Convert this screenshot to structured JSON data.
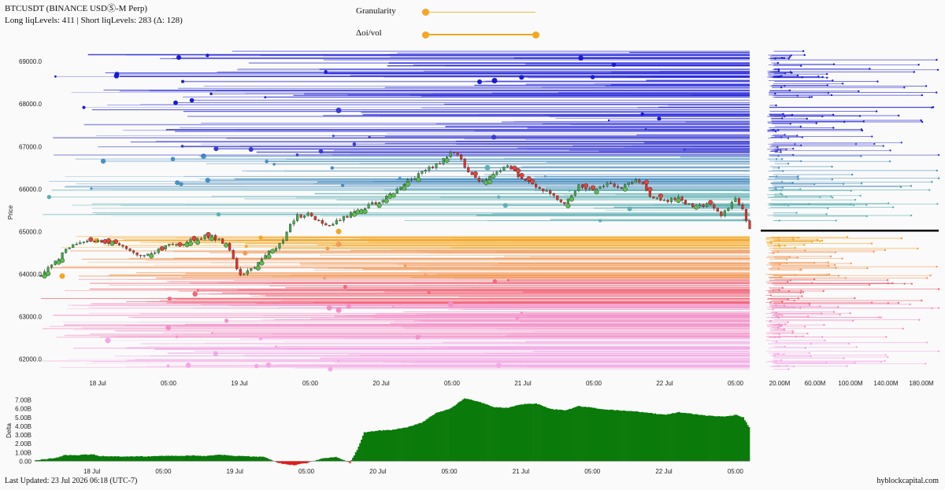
{
  "header": {
    "title": "BTCUSDT (BINANCE USDⓈ-M Perp)",
    "levels_line": "Long liqLevels: 411 | Short liqLevels: 283 (Δ: 128)"
  },
  "controls": {
    "granularity_label": "Granularity",
    "granularity_value": 0.0,
    "oi_vol_label": "Δoi/vol",
    "oi_vol_range": [
      0.0,
      1.0
    ]
  },
  "footer": {
    "last_updated": "Last Updated: 23 Jul 2026 06:18 (UTC-7)",
    "brand": "hyblockcapital.com"
  },
  "colors": {
    "background": "#fafafa",
    "short_levels": [
      "#1a1ad8",
      "#3a3ad6",
      "#4a8fc0",
      "#5fb0b4"
    ],
    "long_levels": [
      "#f5a623",
      "#f39a5a",
      "#f2677a",
      "#f48fc8",
      "#f4a8e6"
    ],
    "candle_up": "#3fa84a",
    "candle_down": "#e0302a",
    "delta_positive": "#0a7a0a",
    "delta_negative": "#e01a1a",
    "current_price_line": "#000000",
    "slider_knob": "#f5a623"
  },
  "chart_data": [
    {
      "type": "line",
      "name": "price-liquidation-levels",
      "ylabel": "Price",
      "xlabel": "",
      "y_ticks": [
        "62000.0",
        "63000.0",
        "64000.0",
        "65000.0",
        "66000.0",
        "67000.0",
        "68000.0",
        "69000.0"
      ],
      "ylim": [
        61600,
        69300
      ],
      "x_ticks": [
        "18 Jul",
        "05:00",
        "19 Jul",
        "05:00",
        "20 Jul",
        "05:00",
        "21 Jul",
        "05:00",
        "22 Jul",
        "05:00"
      ],
      "price_path": [
        [
          0,
          63950
        ],
        [
          2,
          64300
        ],
        [
          4,
          64650
        ],
        [
          6,
          64750
        ],
        [
          8,
          64800
        ],
        [
          10,
          64720
        ],
        [
          12,
          64600
        ],
        [
          14,
          64450
        ],
        [
          16,
          64520
        ],
        [
          18,
          64680
        ],
        [
          20,
          64700
        ],
        [
          22,
          64850
        ],
        [
          24,
          64900
        ],
        [
          26,
          64720
        ],
        [
          27,
          64450
        ],
        [
          28,
          63950
        ],
        [
          30,
          64150
        ],
        [
          32,
          64500
        ],
        [
          34,
          64750
        ],
        [
          35,
          65100
        ],
        [
          36,
          65350
        ],
        [
          38,
          65400
        ],
        [
          40,
          65100
        ],
        [
          42,
          65250
        ],
        [
          44,
          65450
        ],
        [
          46,
          65600
        ],
        [
          48,
          65700
        ],
        [
          50,
          65950
        ],
        [
          52,
          66200
        ],
        [
          54,
          66450
        ],
        [
          56,
          66600
        ],
        [
          58,
          66850
        ],
        [
          59,
          66750
        ],
        [
          60,
          66450
        ],
        [
          62,
          66150
        ],
        [
          64,
          66400
        ],
        [
          66,
          66550
        ],
        [
          68,
          66200
        ],
        [
          70,
          66050
        ],
        [
          72,
          65900
        ],
        [
          74,
          65650
        ],
        [
          76,
          66100
        ],
        [
          78,
          65950
        ],
        [
          80,
          66150
        ],
        [
          82,
          66050
        ],
        [
          84,
          66250
        ],
        [
          86,
          65850
        ],
        [
          88,
          65700
        ],
        [
          90,
          65800
        ],
        [
          92,
          65550
        ],
        [
          94,
          65650
        ],
        [
          96,
          65400
        ],
        [
          98,
          65750
        ],
        [
          99,
          65500
        ],
        [
          100,
          65050
        ]
      ],
      "current_price": 65020,
      "side_axis_ticks": [
        "20.00M",
        "60.00M",
        "100.00M",
        "140.00M",
        "180.00M"
      ]
    },
    {
      "type": "area",
      "name": "delta",
      "ylabel": "Delta",
      "y_ticks": [
        "0.00",
        "1.00B",
        "2.00B",
        "3.00B",
        "4.00B",
        "5.00B",
        "6.00B",
        "7.00B"
      ],
      "ylim": [
        -0.5,
        7.5
      ],
      "x_ticks": [
        "18 Jul",
        "05:00",
        "19 Jul",
        "05:00",
        "20 Jul",
        "05:00",
        "21 Jul",
        "05:00",
        "22 Jul",
        "05:00"
      ],
      "unit": "B",
      "series": [
        [
          0,
          0.1
        ],
        [
          3,
          0.4
        ],
        [
          4,
          0.7
        ],
        [
          6,
          0.7
        ],
        [
          8,
          0.8
        ],
        [
          9,
          0.6
        ],
        [
          12,
          0.55
        ],
        [
          16,
          0.55
        ],
        [
          18,
          0.6
        ],
        [
          22,
          0.65
        ],
        [
          24,
          0.6
        ],
        [
          26,
          0.75
        ],
        [
          28,
          0.6
        ],
        [
          32,
          0.5
        ],
        [
          34,
          -0.2
        ],
        [
          36,
          -0.45
        ],
        [
          38,
          -0.2
        ],
        [
          40,
          0.3
        ],
        [
          42,
          0.5
        ],
        [
          44,
          -0.2
        ],
        [
          45,
          1.3
        ],
        [
          46,
          3.3
        ],
        [
          48,
          3.5
        ],
        [
          50,
          3.6
        ],
        [
          52,
          3.9
        ],
        [
          54,
          4.4
        ],
        [
          56,
          5.5
        ],
        [
          58,
          6.0
        ],
        [
          60,
          7.2
        ],
        [
          62,
          6.8
        ],
        [
          64,
          6.2
        ],
        [
          66,
          6.1
        ],
        [
          68,
          6.5
        ],
        [
          70,
          6.6
        ],
        [
          72,
          6.0
        ],
        [
          74,
          5.8
        ],
        [
          76,
          6.3
        ],
        [
          78,
          6.1
        ],
        [
          80,
          5.9
        ],
        [
          82,
          5.8
        ],
        [
          84,
          5.7
        ],
        [
          86,
          5.5
        ],
        [
          88,
          5.3
        ],
        [
          90,
          5.6
        ],
        [
          92,
          5.4
        ],
        [
          94,
          5.2
        ],
        [
          96,
          5.1
        ],
        [
          98,
          5.3
        ],
        [
          99,
          5.0
        ],
        [
          100,
          3.6
        ]
      ]
    }
  ]
}
